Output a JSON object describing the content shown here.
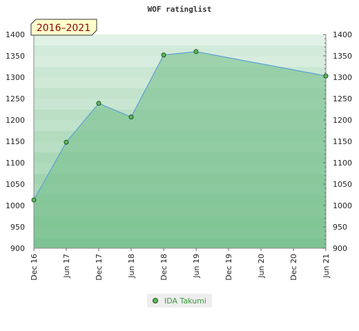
{
  "chart_data": {
    "type": "line",
    "title": "WOF ratinglist",
    "badge": "2016–2021",
    "xlabel": "",
    "ylabel": "",
    "ylim": [
      900,
      1400
    ],
    "yticks": [
      900,
      950,
      1000,
      1050,
      1100,
      1150,
      1200,
      1250,
      1300,
      1350,
      1400
    ],
    "x_ticks": [
      "Dec 16",
      "Jun 17",
      "Dec 17",
      "Jun 18",
      "Dec 18",
      "Jun 19",
      "Dec 19",
      "Jun 20",
      "Dec 20",
      "Jun 21"
    ],
    "grid": true,
    "legend_position": "bottom",
    "series": [
      {
        "name": "IDA Takumi",
        "x": [
          "Dec 16",
          "Jun 17",
          "Dec 17",
          "Jun 18",
          "Dec 18",
          "Jun 19",
          "Jun 21"
        ],
        "values": [
          1013,
          1148,
          1239,
          1207,
          1352,
          1360,
          1303
        ]
      }
    ],
    "colors": {
      "line": "#5a9fd4",
      "fill": "#77c08c",
      "marker_fill": "#5cb85c",
      "marker_stroke": "#1f4f1f",
      "badge_bg": "#ffffcc",
      "badge_text": "#8b0000",
      "legend_text": "#3a9a3a"
    }
  }
}
